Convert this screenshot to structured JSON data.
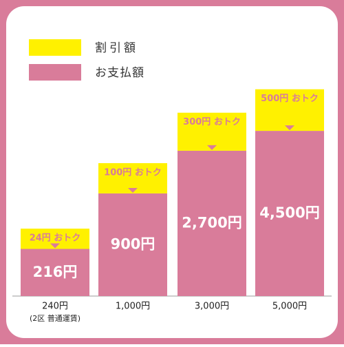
{
  "chart_data": {
    "type": "stacked-bar",
    "categories": [
      "240円",
      "1,000円",
      "3,000円",
      "5,000円"
    ],
    "category_notes": [
      "(2区 普通運賃)",
      null,
      null,
      null
    ],
    "series": [
      {
        "name": "割引額",
        "color": "#fff100",
        "label_color": "#d97c9a",
        "values": [
          24,
          100,
          300,
          500
        ],
        "value_labels": [
          "24円 おトク",
          "100円 おトク",
          "300円 おトク",
          "500円 おトク"
        ]
      },
      {
        "name": "お支払額",
        "color": "#d97c9a",
        "label_color": "#ffffff",
        "values": [
          216,
          900,
          2700,
          4500
        ],
        "value_labels": [
          "216円",
          "900円",
          "2,700円",
          "4,500円"
        ]
      }
    ],
    "legend": "top-left"
  }
}
